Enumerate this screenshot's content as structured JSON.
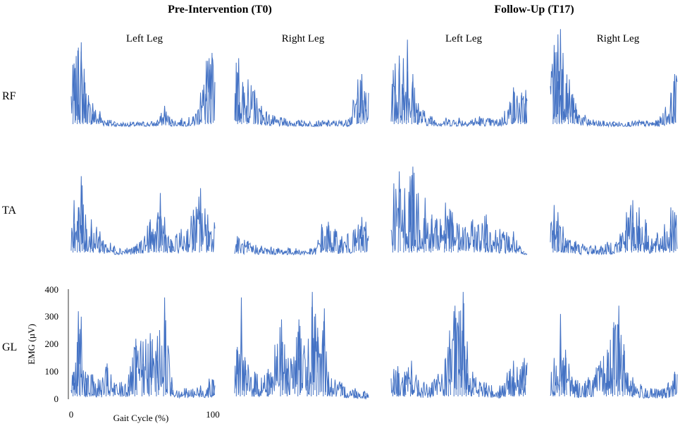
{
  "figure": {
    "group_titles": [
      "Pre-Intervention (T0)",
      "Follow-Up (T17)"
    ],
    "leg_labels": [
      "Left Leg",
      "Right Leg",
      "Left Leg",
      "Right Leg"
    ],
    "row_labels": [
      "RF",
      "TA",
      "GL"
    ],
    "ylabel": "EMG (µV)",
    "xlabel": "Gait Cycle (%)",
    "line_color": "#4472C4"
  },
  "chart_data": {
    "type": "line",
    "xlabel": "Gait Cycle (%)",
    "ylabel": "EMG (µV)",
    "xlim": [
      0,
      100
    ],
    "ylim": [
      0,
      400
    ],
    "x_ticks": [
      "0",
      "100"
    ],
    "y_ticks": [
      "0",
      "100",
      "200",
      "300",
      "400"
    ],
    "panels": [
      {
        "row": "RF",
        "condition": "Pre-Intervention (T0)",
        "leg": "Left Leg",
        "peaks": [
          [
            2,
            240
          ],
          [
            5,
            300
          ],
          [
            7,
            320
          ],
          [
            9,
            220
          ],
          [
            12,
            120
          ],
          [
            15,
            90
          ],
          [
            20,
            60
          ],
          [
            30,
            20
          ],
          [
            50,
            20
          ],
          [
            60,
            25
          ],
          [
            65,
            80
          ],
          [
            70,
            30
          ],
          [
            85,
            40
          ],
          [
            90,
            130
          ],
          [
            94,
            250
          ],
          [
            96,
            260
          ],
          [
            98,
            280
          ]
        ]
      },
      {
        "row": "RF",
        "condition": "Pre-Intervention (T0)",
        "leg": "Right Leg",
        "peaks": [
          [
            3,
            260
          ],
          [
            6,
            170
          ],
          [
            10,
            180
          ],
          [
            15,
            140
          ],
          [
            20,
            80
          ],
          [
            30,
            40
          ],
          [
            50,
            25
          ],
          [
            70,
            25
          ],
          [
            85,
            30
          ],
          [
            92,
            180
          ],
          [
            95,
            200
          ],
          [
            98,
            130
          ]
        ]
      },
      {
        "row": "RF",
        "condition": "Follow-Up (T17)",
        "leg": "Left Leg",
        "peaks": [
          [
            3,
            240
          ],
          [
            6,
            270
          ],
          [
            9,
            260
          ],
          [
            12,
            330
          ],
          [
            16,
            200
          ],
          [
            20,
            90
          ],
          [
            30,
            40
          ],
          [
            50,
            35
          ],
          [
            65,
            40
          ],
          [
            80,
            30
          ],
          [
            90,
            150
          ],
          [
            96,
            130
          ],
          [
            99,
            140
          ]
        ]
      },
      {
        "row": "RF",
        "condition": "Follow-Up (T17)",
        "leg": "Right Leg",
        "peaks": [
          [
            3,
            310
          ],
          [
            6,
            350
          ],
          [
            8,
            370
          ],
          [
            10,
            280
          ],
          [
            15,
            180
          ],
          [
            20,
            90
          ],
          [
            30,
            30
          ],
          [
            50,
            20
          ],
          [
            70,
            25
          ],
          [
            85,
            25
          ],
          [
            95,
            130
          ],
          [
            98,
            200
          ]
        ]
      },
      {
        "row": "TA",
        "condition": "Pre-Intervention (T0)",
        "leg": "Left Leg",
        "peaks": [
          [
            2,
            230
          ],
          [
            5,
            200
          ],
          [
            7,
            330
          ],
          [
            10,
            170
          ],
          [
            14,
            150
          ],
          [
            20,
            100
          ],
          [
            30,
            40
          ],
          [
            45,
            40
          ],
          [
            55,
            150
          ],
          [
            60,
            160
          ],
          [
            62,
            260
          ],
          [
            65,
            160
          ],
          [
            70,
            60
          ],
          [
            85,
            190
          ],
          [
            90,
            280
          ],
          [
            95,
            170
          ]
        ]
      },
      {
        "row": "TA",
        "condition": "Pre-Intervention (T0)",
        "leg": "Right Leg",
        "peaks": [
          [
            2,
            80
          ],
          [
            10,
            60
          ],
          [
            20,
            40
          ],
          [
            40,
            30
          ],
          [
            60,
            30
          ],
          [
            65,
            130
          ],
          [
            70,
            140
          ],
          [
            75,
            110
          ],
          [
            80,
            80
          ],
          [
            90,
            110
          ],
          [
            95,
            160
          ],
          [
            98,
            140
          ]
        ]
      },
      {
        "row": "TA",
        "condition": "Follow-Up (T17)",
        "leg": "Left Leg",
        "peaks": [
          [
            2,
            300
          ],
          [
            6,
            350
          ],
          [
            10,
            280
          ],
          [
            14,
            330
          ],
          [
            16,
            370
          ],
          [
            20,
            260
          ],
          [
            25,
            240
          ],
          [
            30,
            170
          ],
          [
            40,
            220
          ],
          [
            45,
            180
          ],
          [
            50,
            130
          ],
          [
            70,
            170
          ],
          [
            80,
            110
          ],
          [
            90,
            100
          ],
          [
            97,
            10
          ]
        ]
      },
      {
        "row": "TA",
        "condition": "Follow-Up (T17)",
        "leg": "Right Leg",
        "peaks": [
          [
            3,
            210
          ],
          [
            6,
            180
          ],
          [
            10,
            120
          ],
          [
            20,
            60
          ],
          [
            40,
            40
          ],
          [
            55,
            90
          ],
          [
            60,
            180
          ],
          [
            65,
            230
          ],
          [
            70,
            200
          ],
          [
            75,
            150
          ],
          [
            80,
            70
          ],
          [
            90,
            130
          ],
          [
            95,
            200
          ],
          [
            98,
            180
          ]
        ]
      },
      {
        "row": "GL",
        "condition": "Pre-Intervention (T0)",
        "leg": "Left Leg",
        "peaks": [
          [
            2,
            100
          ],
          [
            5,
            320
          ],
          [
            7,
            300
          ],
          [
            10,
            100
          ],
          [
            15,
            90
          ],
          [
            20,
            70
          ],
          [
            25,
            130
          ],
          [
            30,
            60
          ],
          [
            40,
            90
          ],
          [
            45,
            220
          ],
          [
            50,
            210
          ],
          [
            55,
            240
          ],
          [
            60,
            230
          ],
          [
            65,
            370
          ],
          [
            70,
            80
          ],
          [
            80,
            40
          ],
          [
            90,
            50
          ],
          [
            96,
            75
          ],
          [
            99,
            70
          ]
        ]
      },
      {
        "row": "GL",
        "condition": "Pre-Intervention (T0)",
        "leg": "Right Leg",
        "peaks": [
          [
            2,
            190
          ],
          [
            5,
            370
          ],
          [
            8,
            140
          ],
          [
            15,
            100
          ],
          [
            25,
            110
          ],
          [
            35,
            290
          ],
          [
            40,
            150
          ],
          [
            48,
            290
          ],
          [
            55,
            220
          ],
          [
            58,
            390
          ],
          [
            62,
            260
          ],
          [
            67,
            330
          ],
          [
            70,
            100
          ],
          [
            80,
            60
          ],
          [
            90,
            40
          ],
          [
            97,
            30
          ]
        ]
      },
      {
        "row": "GL",
        "condition": "Follow-Up (T17)",
        "leg": "Left Leg",
        "peaks": [
          [
            2,
            110
          ],
          [
            5,
            120
          ],
          [
            10,
            100
          ],
          [
            15,
            140
          ],
          [
            20,
            70
          ],
          [
            30,
            60
          ],
          [
            40,
            150
          ],
          [
            43,
            250
          ],
          [
            47,
            340
          ],
          [
            50,
            320
          ],
          [
            53,
            390
          ],
          [
            56,
            210
          ],
          [
            60,
            100
          ],
          [
            70,
            60
          ],
          [
            80,
            50
          ],
          [
            90,
            140
          ],
          [
            95,
            110
          ],
          [
            98,
            150
          ]
        ]
      },
      {
        "row": "GL",
        "condition": "Follow-Up (T17)",
        "leg": "Right Leg",
        "peaks": [
          [
            3,
            150
          ],
          [
            8,
            310
          ],
          [
            12,
            180
          ],
          [
            20,
            70
          ],
          [
            30,
            80
          ],
          [
            45,
            180
          ],
          [
            50,
            280
          ],
          [
            54,
            340
          ],
          [
            58,
            200
          ],
          [
            65,
            80
          ],
          [
            75,
            40
          ],
          [
            90,
            40
          ],
          [
            98,
            100
          ]
        ]
      }
    ]
  }
}
